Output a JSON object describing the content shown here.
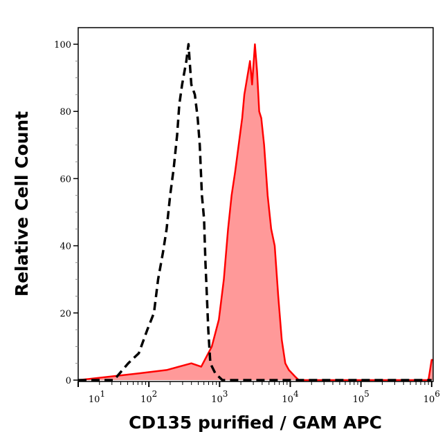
{
  "chart_data": {
    "type": "area",
    "xlabel": "CD135 purified / GAM APC",
    "ylabel": "Relative Cell Count",
    "xscale": "log",
    "xlim": [
      10,
      1050000
    ],
    "ylim": [
      0,
      105
    ],
    "xticks": [
      {
        "base": "10",
        "exp": "1",
        "value": 10
      },
      {
        "base": "10",
        "exp": "2",
        "value": 100
      },
      {
        "base": "10",
        "exp": "3",
        "value": 1000
      },
      {
        "base": "10",
        "exp": "4",
        "value": 10000
      },
      {
        "base": "10",
        "exp": "5",
        "value": 100000
      },
      {
        "base": "10",
        "exp": "6",
        "value": 1000000
      }
    ],
    "yticks": [
      "0",
      "20",
      "40",
      "60",
      "80",
      "100"
    ],
    "grid": false,
    "series": [
      {
        "style": "dashed",
        "color": "#000000",
        "fill": "none",
        "x": [
          10,
          32,
          51,
          72,
          95,
          118,
          135,
          158,
          178,
          200,
          224,
          251,
          269,
          295,
          339,
          363,
          398,
          447,
          490,
          525,
          562,
          603,
          631,
          661,
          692,
          741,
          871,
          1096,
          1000000
        ],
        "y": [
          0,
          0,
          5,
          8,
          15,
          20,
          30,
          38,
          45,
          55,
          63,
          73,
          82,
          88,
          95,
          100,
          88,
          85,
          78,
          70,
          55,
          48,
          35,
          25,
          15,
          5,
          2,
          0,
          0
        ]
      },
      {
        "style": "solid",
        "color": "#ff0000",
        "fill": "#ff9999",
        "x": [
          10,
          72,
          178,
          398,
          550,
          776,
          977,
          1148,
          1318,
          1479,
          1660,
          1862,
          2089,
          2239,
          2455,
          2692,
          2884,
          3162,
          3388,
          3631,
          3890,
          4266,
          4786,
          5370,
          6026,
          6761,
          7586,
          8511,
          9550,
          11750,
          13183,
          900000,
          1000000,
          1050000
        ],
        "y": [
          0,
          2,
          3,
          5,
          4,
          10,
          18,
          30,
          45,
          55,
          62,
          70,
          78,
          85,
          90,
          95,
          88,
          100,
          92,
          80,
          78,
          70,
          55,
          45,
          40,
          25,
          12,
          5,
          3,
          1,
          0,
          0,
          6,
          6
        ]
      }
    ]
  }
}
